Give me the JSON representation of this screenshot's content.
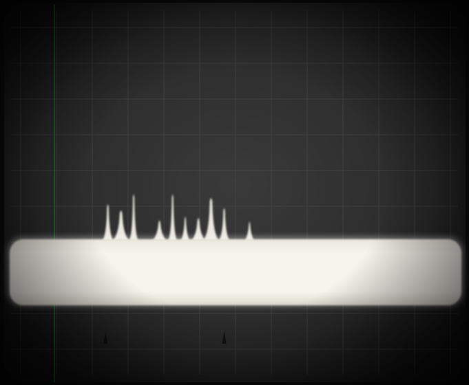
{
  "image": {
    "subject": "oscilloscope-spectrum-display",
    "colors": {
      "screen_dark": "#2a2a2a",
      "screen_mid": "#3a3a3a",
      "graticule": "#555555",
      "trace": "#f4f2ea",
      "bezel": "#0c0c0c",
      "edge_line": "#1f6a2a"
    },
    "peaks": [
      {
        "label": "peak-1",
        "position": 0.23,
        "height": 0.62,
        "width": 0.007
      },
      {
        "label": "peak-2",
        "position": 0.258,
        "height": 0.52,
        "width": 0.011
      },
      {
        "label": "peak-3",
        "position": 0.285,
        "height": 0.78,
        "width": 0.006
      },
      {
        "label": "peak-4",
        "position": 0.34,
        "height": 0.36,
        "width": 0.009
      },
      {
        "label": "peak-5",
        "position": 0.368,
        "height": 0.78,
        "width": 0.006
      },
      {
        "label": "peak-6",
        "position": 0.395,
        "height": 0.42,
        "width": 0.006
      },
      {
        "label": "peak-7",
        "position": 0.423,
        "height": 0.4,
        "width": 0.009
      },
      {
        "label": "peak-8",
        "position": 0.45,
        "height": 0.72,
        "width": 0.0105
      },
      {
        "label": "peak-9",
        "position": 0.478,
        "height": 0.56,
        "width": 0.007
      },
      {
        "label": "peak-10",
        "position": 0.532,
        "height": 0.34,
        "width": 0.006
      }
    ],
    "markers": [
      {
        "label": "marker-left",
        "position": 0.225
      },
      {
        "label": "marker-right",
        "position": 0.478
      }
    ]
  }
}
